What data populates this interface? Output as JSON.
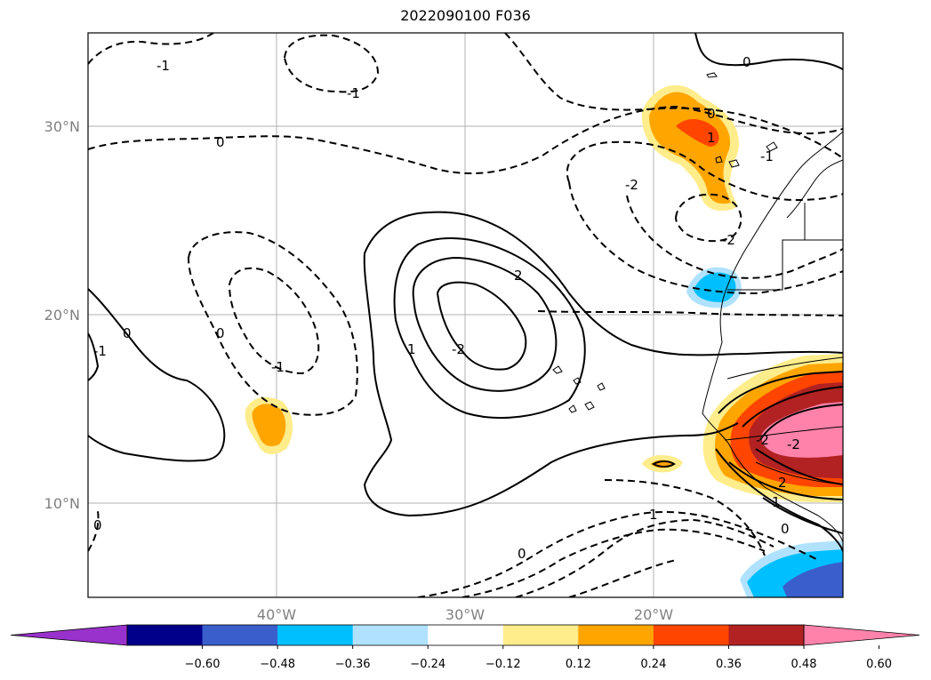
{
  "title": "2022090100 F036",
  "map": {
    "lat_labels": [
      "30°N",
      "20°N",
      "10°N"
    ],
    "lon_labels": [
      "40°W",
      "30°W",
      "20°W"
    ],
    "contour_labels": [
      "-1",
      "-1",
      "0",
      "0",
      "1",
      "-2",
      "-2",
      "0",
      "0",
      "-1",
      "2",
      "1",
      "-2",
      "0",
      "-1",
      "0",
      "1",
      "-1",
      "0",
      "-2",
      "2",
      "1",
      "-2",
      "0"
    ]
  },
  "colorbar": {
    "colors": [
      "#9932cc",
      "#00008b",
      "#3a5fcd",
      "#00bfff",
      "#b0e2ff",
      "#ffffff",
      "#ffec8b",
      "#ffa500",
      "#ff4500",
      "#b22222",
      "#ff82ab"
    ],
    "tick_labels": [
      "−0.60",
      "−0.48",
      "−0.36",
      "−0.24",
      "−0.12",
      "0.12",
      "0.24",
      "0.36",
      "0.48",
      "0.60"
    ]
  }
}
